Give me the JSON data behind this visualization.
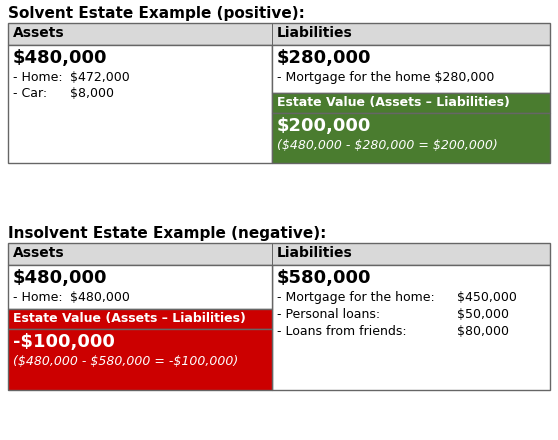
{
  "title1": "Solvent Estate Example (positive):",
  "title2": "Insolvent Estate Example (negative):",
  "bg_color": "#ffffff",
  "header_bg": "#d9d9d9",
  "border_color": "#666666",
  "green_bg": "#4a7c2f",
  "red_bg": "#cc0000",
  "white_text": "#ffffff",
  "black_text": "#000000",
  "table1": {
    "assets_header": "Assets",
    "liabilities_header": "Liabilities",
    "assets_total": "$480,000",
    "assets_items": [
      [
        "- Home:",
        "$472,000"
      ],
      [
        "- Car:",
        "$8,000"
      ]
    ],
    "liabilities_total": "$280,000",
    "liabilities_items": [
      "- Mortgage for the home $280,000"
    ],
    "estate_label": "Estate Value (Assets – Liabilities)",
    "estate_value": "$200,000",
    "estate_formula": "($480,000 - $280,000 = $200,000)"
  },
  "table2": {
    "assets_header": "Assets",
    "liabilities_header": "Liabilities",
    "assets_total": "$480,000",
    "assets_items": [
      [
        "- Home:",
        "$480,000"
      ]
    ],
    "liabilities_total": "$580,000",
    "liabilities_items": [
      [
        "- Mortgage for the home:",
        "$450,000"
      ],
      [
        "- Personal loans:",
        "$50,000"
      ],
      [
        "- Loans from friends:",
        "$80,000"
      ]
    ],
    "estate_label": "Estate Value (Assets – Liabilities)",
    "estate_value": "-$100,000",
    "estate_formula": "($480,000 - $580,000 = -$100,000)"
  }
}
